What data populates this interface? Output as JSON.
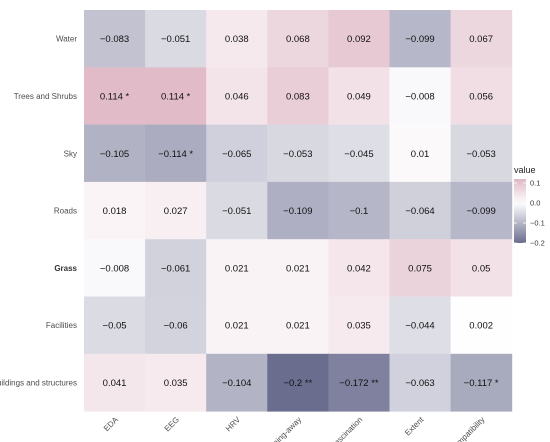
{
  "chart_data": {
    "type": "heatmap",
    "columns": [
      "EDA",
      "EEG",
      "HRV",
      "Being-away",
      "Fascination",
      "Extent",
      "Compatibility"
    ],
    "rows": [
      "Water",
      "Trees and Shrubs",
      "Sky",
      "Roads",
      "Grass",
      "Facilities",
      "Buildings and structures"
    ],
    "highlighted_row": "Grass",
    "values": [
      [
        -0.083,
        -0.051,
        0.038,
        0.068,
        0.092,
        -0.099,
        0.067
      ],
      [
        0.114,
        0.114,
        0.046,
        0.083,
        0.049,
        -0.008,
        0.056
      ],
      [
        -0.105,
        -0.114,
        -0.065,
        -0.053,
        -0.045,
        0.01,
        -0.053
      ],
      [
        0.018,
        0.027,
        -0.051,
        -0.109,
        -0.1,
        -0.064,
        -0.099
      ],
      [
        -0.008,
        -0.061,
        0.021,
        0.021,
        0.042,
        0.075,
        0.05
      ],
      [
        -0.05,
        -0.06,
        0.021,
        0.021,
        0.035,
        -0.044,
        0.002
      ],
      [
        0.041,
        0.035,
        -0.104,
        -0.2,
        -0.172,
        -0.063,
        -0.117
      ]
    ],
    "labels": [
      [
        "−0.083",
        "−0.051",
        "0.038",
        "0.068",
        "0.092",
        "−0.099",
        "0.067"
      ],
      [
        "0.114 *",
        "0.114 *",
        "0.046",
        "0.083",
        "0.049",
        "−0.008",
        "0.056"
      ],
      [
        "−0.105",
        "−0.114 *",
        "−0.065",
        "−0.053",
        "−0.045",
        "0.01",
        "−0.053"
      ],
      [
        "0.018",
        "0.027",
        "−0.051",
        "−0.109",
        "−0.1",
        "−0.064",
        "−0.099"
      ],
      [
        "−0.008",
        "−0.061",
        "0.021",
        "0.021",
        "0.042",
        "0.075",
        "0.05"
      ],
      [
        "−0.05",
        "−0.06",
        "0.021",
        "0.021",
        "0.035",
        "−0.044",
        "0.002"
      ],
      [
        "0.041",
        "0.035",
        "−0.104",
        "−0.2 **",
        "−0.172 **",
        "−0.063",
        "−0.117 *"
      ]
    ],
    "color_scale": {
      "low": "#6b6d8f",
      "mid": "#ffffff",
      "high": "#dfb8c5",
      "domain": [
        -0.2,
        0,
        0.12
      ]
    },
    "legend": {
      "title": "value",
      "placement": "right",
      "ticks": [
        0.1,
        0.0,
        -0.1,
        -0.2
      ],
      "tick_labels": [
        "0.1",
        "0.0",
        "−0.1",
        "−0.2"
      ]
    }
  }
}
